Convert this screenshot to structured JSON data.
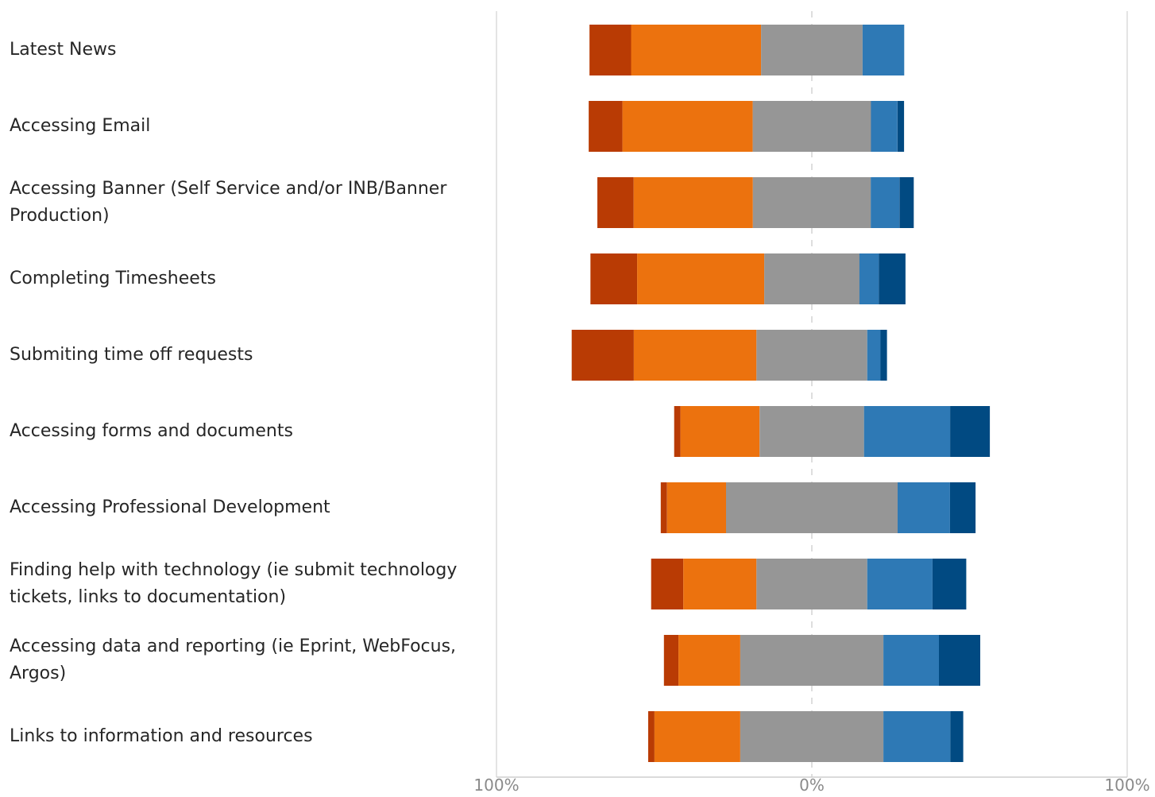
{
  "chart_data": {
    "type": "bar",
    "orientation": "horizontal",
    "stacking": "diverging",
    "title": "",
    "xlabel": "",
    "ylabel": "",
    "xlim": [
      -100,
      100
    ],
    "x_ticks": [
      "100%",
      "0%",
      "100%"
    ],
    "grid": true,
    "legend": "none",
    "categories": [
      "Latest News",
      "Accessing Email",
      "Accessing Banner (Self Service and/or INB/Banner Production)",
      "Completing Timesheets",
      "Submiting time off requests",
      "Accessing forms and documents",
      "Accessing Professional Development",
      "Finding help with technology (ie submit technology tickets, links to documentation)",
      "Accessing data and reporting (ie Eprint, WebFocus, Argos)",
      "Links to information and resources"
    ],
    "series": [
      {
        "color": "#B93B04",
        "values": [
          13.2,
          10.7,
          11.5,
          14.8,
          19.7,
          2.0,
          2.0,
          10.2,
          4.6,
          2.0
        ]
      },
      {
        "color": "#EC720E",
        "values": [
          41.2,
          41.3,
          37.8,
          40.3,
          38.9,
          25.1,
          18.7,
          23.2,
          19.6,
          27.2
        ]
      },
      {
        "color": "#969696",
        "values": [
          32.2,
          37.5,
          37.4,
          30.2,
          35.1,
          33.1,
          54.4,
          35.1,
          45.4,
          45.4
        ]
      },
      {
        "color": "#2E79B5",
        "values": [
          13.2,
          8.4,
          9.1,
          6.1,
          4.2,
          27.3,
          16.6,
          20.7,
          17.6,
          21.2
        ]
      },
      {
        "color": "#014A82",
        "values": [
          0.0,
          2.1,
          4.5,
          8.5,
          2.1,
          12.6,
          8.1,
          10.7,
          13.1,
          4.1
        ]
      }
    ],
    "neutral_series_index": 2
  }
}
